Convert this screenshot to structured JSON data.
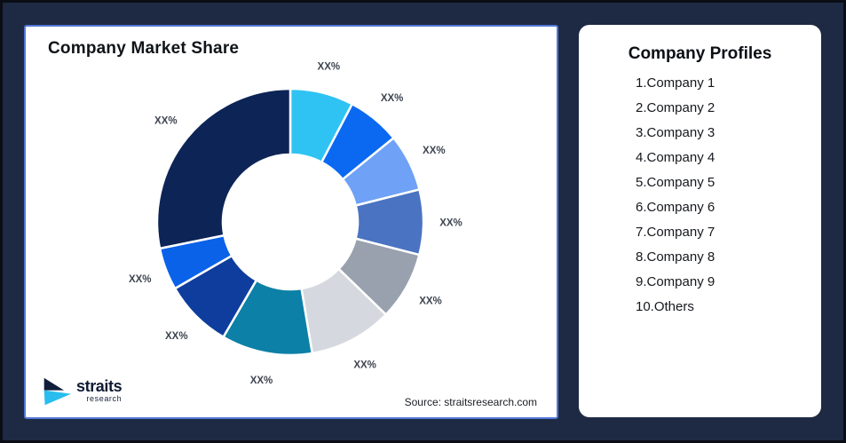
{
  "app": {
    "background_color": "#1E2A43",
    "frame_border_color": "#0A0D14",
    "card_border_color": "#5178D6"
  },
  "market_share_card": {
    "title": "Company Market Share",
    "source_note": "Source: straitsresearch.com",
    "logo": {
      "name": "straits",
      "subtext": "research"
    }
  },
  "profiles_card": {
    "title": "Company Profiles",
    "items": [
      "1.Company 1",
      "2.Company 2",
      "3.Company 3",
      "4.Company 4",
      "5.Company 5",
      "6.Company 6",
      "7.Company 7",
      "8.Company 8",
      "9.Company 9",
      "10.Others"
    ]
  },
  "chart_data": {
    "type": "pie",
    "subtype": "donut",
    "title": "Company Market Share",
    "legend": false,
    "data_labels": "placeholder percentages",
    "label_color": "#3D4450",
    "segments": [
      {
        "id": 1,
        "label": "XX%",
        "color": "#2EC3F3",
        "start_deg": 0,
        "end_deg": 27.7,
        "approx_share_pct": 7.7
      },
      {
        "id": 2,
        "label": "XX%",
        "color": "#0B69F1",
        "start_deg": 27.7,
        "end_deg": 50.9,
        "approx_share_pct": 6.4
      },
      {
        "id": 3,
        "label": "XX%",
        "color": "#6FA1F6",
        "start_deg": 50.9,
        "end_deg": 75.9,
        "approx_share_pct": 6.9
      },
      {
        "id": 4,
        "label": "XX%",
        "color": "#4A73C2",
        "start_deg": 75.9,
        "end_deg": 104.3,
        "approx_share_pct": 7.9
      },
      {
        "id": 5,
        "label": "XX%",
        "color": "#99A0AE",
        "start_deg": 104.3,
        "end_deg": 134.1,
        "approx_share_pct": 8.3
      },
      {
        "id": 6,
        "label": "XX%",
        "color": "#D5D9DF",
        "start_deg": 134.1,
        "end_deg": 170.5,
        "approx_share_pct": 10.1
      },
      {
        "id": 7,
        "label": "XX%",
        "color": "#0C80A6",
        "start_deg": 170.5,
        "end_deg": 210.2,
        "approx_share_pct": 11.0
      },
      {
        "id": 8,
        "label": "XX%",
        "color": "#0E3D9D",
        "start_deg": 210.2,
        "end_deg": 240.0,
        "approx_share_pct": 8.3
      },
      {
        "id": 9,
        "label": "XX%",
        "color": "#0A62E8",
        "start_deg": 240.0,
        "end_deg": 258.5,
        "approx_share_pct": 5.1
      },
      {
        "id": 10,
        "label": "XX%",
        "color": "#0D2456",
        "start_deg": 258.5,
        "end_deg": 360.0,
        "approx_share_pct": 28.2
      }
    ],
    "geometry": {
      "outer_radius": 150,
      "inner_radius": 76,
      "label_radius": 181,
      "gap_stroke": "#FFFFFF"
    }
  }
}
